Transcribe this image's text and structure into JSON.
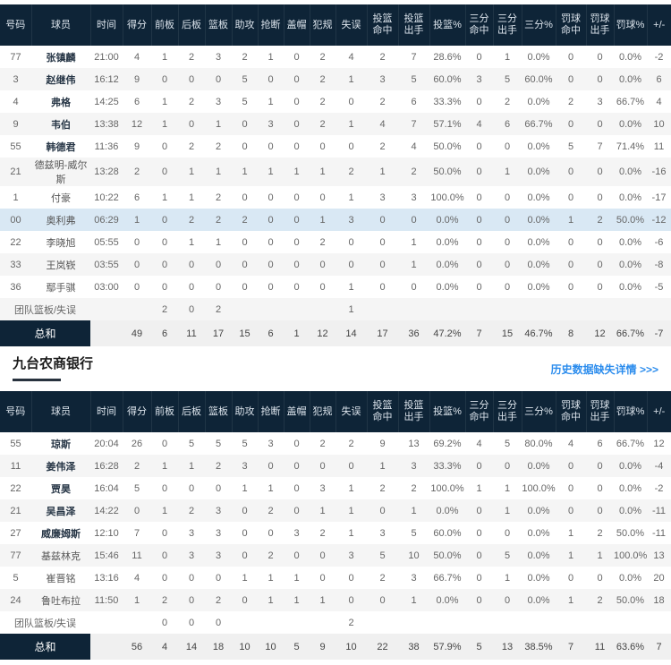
{
  "columns": [
    "号码",
    "球员",
    "时间",
    "得分",
    "前板",
    "后板",
    "篮板",
    "助攻",
    "抢断",
    "盖帽",
    "犯规",
    "失误",
    "投篮\n命中",
    "投篮\n出手",
    "投篮%",
    "三分\n命中",
    "三分\n出手",
    "三分%",
    "罚球\n命中",
    "罚球\n出手",
    "罚球%",
    "+/-"
  ],
  "section": {
    "team2_title": "九台农商银行",
    "history_link": "历史数据缺失详情 >>>"
  },
  "colors": {
    "header_bg": "#0e2437",
    "stripe_row": "#f5f5f5",
    "highlight_row": "#d9e8f4",
    "totals_row_bg": "#f0f0f0",
    "totals_label_bg": "#0e2437",
    "link_blue": "#2b8ced",
    "title_underline": "#28323e"
  },
  "tables": [
    {
      "players": [
        {
          "bold": true,
          "highlight": false,
          "cells": [
            "77",
            "张镇麟",
            "21:00",
            "4",
            "1",
            "2",
            "3",
            "2",
            "1",
            "0",
            "2",
            "4",
            "2",
            "7",
            "28.6%",
            "0",
            "1",
            "0.0%",
            "0",
            "0",
            "0.0%",
            "-2"
          ]
        },
        {
          "bold": true,
          "highlight": false,
          "cells": [
            "3",
            "赵继伟",
            "16:12",
            "9",
            "0",
            "0",
            "0",
            "5",
            "0",
            "0",
            "2",
            "1",
            "3",
            "5",
            "60.0%",
            "3",
            "5",
            "60.0%",
            "0",
            "0",
            "0.0%",
            "6"
          ]
        },
        {
          "bold": true,
          "highlight": false,
          "cells": [
            "4",
            "弗格",
            "14:25",
            "6",
            "1",
            "2",
            "3",
            "5",
            "1",
            "0",
            "2",
            "0",
            "2",
            "6",
            "33.3%",
            "0",
            "2",
            "0.0%",
            "2",
            "3",
            "66.7%",
            "4"
          ]
        },
        {
          "bold": true,
          "highlight": false,
          "cells": [
            "9",
            "韦伯",
            "13:38",
            "12",
            "1",
            "0",
            "1",
            "0",
            "3",
            "0",
            "2",
            "1",
            "4",
            "7",
            "57.1%",
            "4",
            "6",
            "66.7%",
            "0",
            "0",
            "0.0%",
            "10"
          ]
        },
        {
          "bold": true,
          "highlight": false,
          "cells": [
            "55",
            "韩德君",
            "11:36",
            "9",
            "0",
            "2",
            "2",
            "0",
            "0",
            "0",
            "0",
            "0",
            "2",
            "4",
            "50.0%",
            "0",
            "0",
            "0.0%",
            "5",
            "7",
            "71.4%",
            "11"
          ]
        },
        {
          "bold": false,
          "highlight": false,
          "cells": [
            "21",
            "德兹明-威尔斯",
            "13:28",
            "2",
            "0",
            "1",
            "1",
            "1",
            "1",
            "1",
            "1",
            "2",
            "1",
            "2",
            "50.0%",
            "0",
            "1",
            "0.0%",
            "0",
            "0",
            "0.0%",
            "-16"
          ]
        },
        {
          "bold": false,
          "highlight": false,
          "cells": [
            "1",
            "付豪",
            "10:22",
            "6",
            "1",
            "1",
            "2",
            "0",
            "0",
            "0",
            "0",
            "1",
            "3",
            "3",
            "100.0%",
            "0",
            "0",
            "0.0%",
            "0",
            "0",
            "0.0%",
            "-17"
          ]
        },
        {
          "bold": false,
          "highlight": true,
          "cells": [
            "00",
            "奥利弗",
            "06:29",
            "1",
            "0",
            "2",
            "2",
            "2",
            "0",
            "0",
            "1",
            "3",
            "0",
            "0",
            "0.0%",
            "0",
            "0",
            "0.0%",
            "1",
            "2",
            "50.0%",
            "-12"
          ]
        },
        {
          "bold": false,
          "highlight": false,
          "cells": [
            "22",
            "李晓旭",
            "05:55",
            "0",
            "0",
            "1",
            "1",
            "0",
            "0",
            "0",
            "2",
            "0",
            "0",
            "1",
            "0.0%",
            "0",
            "0",
            "0.0%",
            "0",
            "0",
            "0.0%",
            "-6"
          ]
        },
        {
          "bold": false,
          "highlight": false,
          "cells": [
            "33",
            "王岚嵚",
            "03:55",
            "0",
            "0",
            "0",
            "0",
            "0",
            "0",
            "0",
            "0",
            "0",
            "0",
            "1",
            "0.0%",
            "0",
            "0",
            "0.0%",
            "0",
            "0",
            "0.0%",
            "-8"
          ]
        },
        {
          "bold": false,
          "highlight": false,
          "cells": [
            "36",
            "鄢手骐",
            "03:00",
            "0",
            "0",
            "0",
            "0",
            "0",
            "0",
            "0",
            "0",
            "1",
            "0",
            "0",
            "0.0%",
            "0",
            "0",
            "0.0%",
            "0",
            "0",
            "0.0%",
            "-5"
          ]
        }
      ],
      "team_row": {
        "label": "团队篮板/失误",
        "values": [
          "",
          "",
          "2",
          "0",
          "2",
          "",
          "",
          "",
          "",
          "1",
          "",
          "",
          "",
          "",
          "",
          "",
          "",
          "",
          "",
          ""
        ]
      },
      "total_row": {
        "label": "总和",
        "values": [
          "",
          "49",
          "6",
          "11",
          "17",
          "15",
          "6",
          "1",
          "12",
          "14",
          "17",
          "36",
          "47.2%",
          "7",
          "15",
          "46.7%",
          "8",
          "12",
          "66.7%",
          "-7"
        ]
      }
    },
    {
      "players": [
        {
          "bold": true,
          "highlight": false,
          "cells": [
            "55",
            "琼斯",
            "20:04",
            "26",
            "0",
            "5",
            "5",
            "5",
            "3",
            "0",
            "2",
            "2",
            "9",
            "13",
            "69.2%",
            "4",
            "5",
            "80.0%",
            "4",
            "6",
            "66.7%",
            "12"
          ]
        },
        {
          "bold": true,
          "highlight": false,
          "cells": [
            "11",
            "姜伟泽",
            "16:28",
            "2",
            "1",
            "1",
            "2",
            "3",
            "0",
            "0",
            "0",
            "0",
            "1",
            "3",
            "33.3%",
            "0",
            "0",
            "0.0%",
            "0",
            "0",
            "0.0%",
            "-4"
          ]
        },
        {
          "bold": true,
          "highlight": false,
          "cells": [
            "22",
            "贾昊",
            "16:04",
            "5",
            "0",
            "0",
            "0",
            "1",
            "1",
            "0",
            "3",
            "1",
            "2",
            "2",
            "100.0%",
            "1",
            "1",
            "100.0%",
            "0",
            "0",
            "0.0%",
            "-2"
          ]
        },
        {
          "bold": true,
          "highlight": false,
          "cells": [
            "21",
            "吴昌泽",
            "14:22",
            "0",
            "1",
            "2",
            "3",
            "0",
            "2",
            "0",
            "1",
            "1",
            "0",
            "1",
            "0.0%",
            "0",
            "1",
            "0.0%",
            "0",
            "0",
            "0.0%",
            "-11"
          ]
        },
        {
          "bold": true,
          "highlight": false,
          "cells": [
            "27",
            "威廉姆斯",
            "12:10",
            "7",
            "0",
            "3",
            "3",
            "0",
            "0",
            "3",
            "2",
            "1",
            "3",
            "5",
            "60.0%",
            "0",
            "0",
            "0.0%",
            "1",
            "2",
            "50.0%",
            "-11"
          ]
        },
        {
          "bold": false,
          "highlight": false,
          "cells": [
            "77",
            "基兹林克",
            "15:46",
            "11",
            "0",
            "3",
            "3",
            "0",
            "2",
            "0",
            "0",
            "3",
            "5",
            "10",
            "50.0%",
            "0",
            "5",
            "0.0%",
            "1",
            "1",
            "100.0%",
            "13"
          ]
        },
        {
          "bold": false,
          "highlight": false,
          "cells": [
            "5",
            "崔晋铭",
            "13:16",
            "4",
            "0",
            "0",
            "0",
            "1",
            "1",
            "1",
            "0",
            "0",
            "2",
            "3",
            "66.7%",
            "0",
            "1",
            "0.0%",
            "0",
            "0",
            "0.0%",
            "20"
          ]
        },
        {
          "bold": false,
          "highlight": false,
          "cells": [
            "24",
            "鲁吐布拉",
            "11:50",
            "1",
            "2",
            "0",
            "2",
            "0",
            "1",
            "1",
            "1",
            "0",
            "0",
            "1",
            "0.0%",
            "0",
            "0",
            "0.0%",
            "1",
            "2",
            "50.0%",
            "18"
          ]
        }
      ],
      "team_row": {
        "label": "团队篮板/失误",
        "values": [
          "",
          "",
          "0",
          "0",
          "0",
          "",
          "",
          "",
          "",
          "2",
          "",
          "",
          "",
          "",
          "",
          "",
          "",
          "",
          "",
          ""
        ]
      },
      "total_row": {
        "label": "总和",
        "values": [
          "",
          "56",
          "4",
          "14",
          "18",
          "10",
          "10",
          "5",
          "9",
          "10",
          "22",
          "38",
          "57.9%",
          "5",
          "13",
          "38.5%",
          "7",
          "11",
          "63.6%",
          "7"
        ]
      }
    }
  ]
}
